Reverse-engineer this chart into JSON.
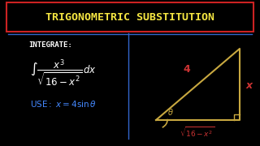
{
  "bg_color": "#000000",
  "title_text": "TRIGONOMETRIC SUBSTITUTION",
  "title_color": "#f5e642",
  "title_box_color": "#cc2222",
  "integrate_label": "INTEGRATE:",
  "integral_expr": "$\\int \\dfrac{x^3}{\\sqrt{16 - x^2}}\\, dx$",
  "use_expr": "$\\mathrm{USE}: x = 4\\sin\\theta$",
  "use_color": "#4488ff",
  "white_color": "#ffffff",
  "red_color": "#cc3333",
  "triangle_fill": "#000000",
  "triangle_line_color": "#c8a840",
  "label_4_color": "#cc3333",
  "label_x_color": "#cc3333",
  "label_theta_color": "#c8a840",
  "label_bottom_color": "#cc3333",
  "divider_color": "#3366cc"
}
